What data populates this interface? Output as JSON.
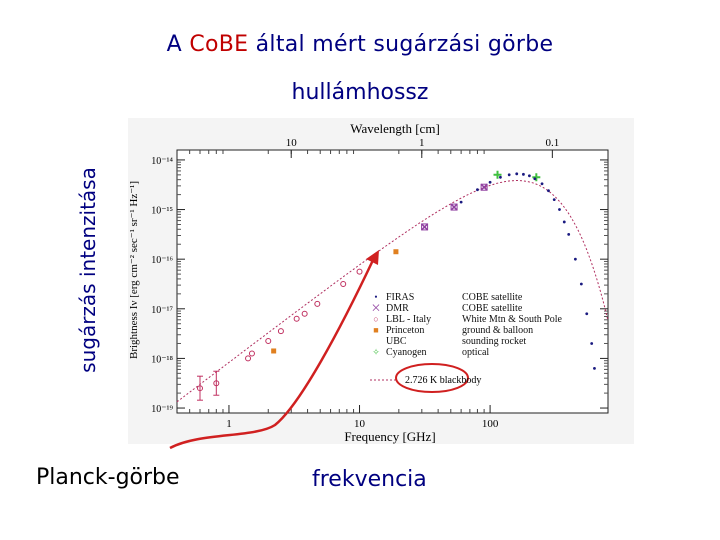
{
  "slide": {
    "title_prefix": "A ",
    "title_accent": "CoBE",
    "title_suffix": " által mért sugárzási görbe",
    "caption_wavelength": "hullámhossz",
    "caption_intensity": "sugárzás intenzitása",
    "caption_planck": "Planck-görbe",
    "caption_frequency": "frekvencia",
    "accent_color": "#c00000",
    "text_color": "#000080",
    "arrow_color": "#d02020"
  },
  "chart_data": {
    "type": "scatter",
    "top_axis_label": "Wavelength [cm]",
    "top_ticks": [
      "10",
      "1",
      "0.1"
    ],
    "top_tick_values_cm": [
      10,
      1,
      0.1
    ],
    "xlabel": "Frequency [GHz]",
    "xticks": [
      "1",
      "10",
      "100"
    ],
    "xscale": "log",
    "xlim": [
      0.4,
      800
    ],
    "ylabel": "Brightness Iν [erg cm⁻² sec⁻¹ sr⁻¹ Hz⁻¹]",
    "yticks": [
      "10⁻¹⁴",
      "10⁻¹⁵",
      "10⁻¹⁶",
      "10⁻¹⁷",
      "10⁻¹⁸",
      "10⁻¹⁹"
    ],
    "ytick_exponents": [
      -14,
      -15,
      -16,
      -17,
      -18,
      -19
    ],
    "yscale": "log",
    "ylim_exponent": [
      -19.1,
      -13.8
    ],
    "legend_placement": "bottom-right",
    "legend": [
      {
        "symbol": "•",
        "name": "FIRAS",
        "instrument": "COBE satellite",
        "color": "#1a1a80"
      },
      {
        "symbol": "⨉",
        "name": "DMR",
        "instrument": "COBE satellite",
        "color": "#9040a0"
      },
      {
        "symbol": "○",
        "name": "LBL - Italy",
        "instrument": "White Mtn & South Pole",
        "color": "#c03060"
      },
      {
        "symbol": "■",
        "name": "Princeton",
        "instrument": "ground & balloon",
        "color": "#e08020"
      },
      {
        "symbol": "",
        "name": "UBC",
        "instrument": "sounding rocket",
        "color": "#404040"
      },
      {
        "symbol": "✧",
        "name": "Cyanogen",
        "instrument": "optical",
        "color": "#40c040"
      }
    ],
    "model_label": "2.726 K blackbody",
    "blackbody_temperature_K": 2.726,
    "series": [
      {
        "name": "LBL - Italy",
        "x": [
          0.6,
          0.8,
          1.4,
          1.5,
          2.0,
          2.5,
          3.3,
          3.8,
          4.75,
          7.5,
          10.0
        ],
        "y": [
          -18.6,
          -18.5,
          -18.0,
          -17.9,
          -17.65,
          -17.45,
          -17.2,
          -17.1,
          -16.9,
          -16.5,
          -16.25
        ]
      },
      {
        "name": "Princeton",
        "x": [
          2.2,
          19.0
        ],
        "y": [
          -17.85,
          -15.85
        ]
      },
      {
        "name": "DMR",
        "x": [
          31.5,
          53.0,
          90.0
        ],
        "y": [
          -15.35,
          -14.95,
          -14.55
        ]
      },
      {
        "name": "Cyanogen",
        "x": [
          114.0,
          226.0
        ],
        "y": [
          -14.3,
          -14.35
        ]
      },
      {
        "name": "FIRAS",
        "x": [
          60,
          80,
          100,
          120,
          140,
          160,
          180,
          200,
          220,
          250,
          280,
          310,
          340,
          370,
          400,
          450,
          500,
          550,
          600,
          630
        ],
        "y": [
          -14.85,
          -14.6,
          -14.45,
          -14.35,
          -14.3,
          -14.28,
          -14.29,
          -14.32,
          -14.38,
          -14.48,
          -14.62,
          -14.8,
          -15.0,
          -15.25,
          -15.5,
          -16.0,
          -16.5,
          -17.1,
          -17.7,
          -18.2
        ]
      }
    ]
  }
}
